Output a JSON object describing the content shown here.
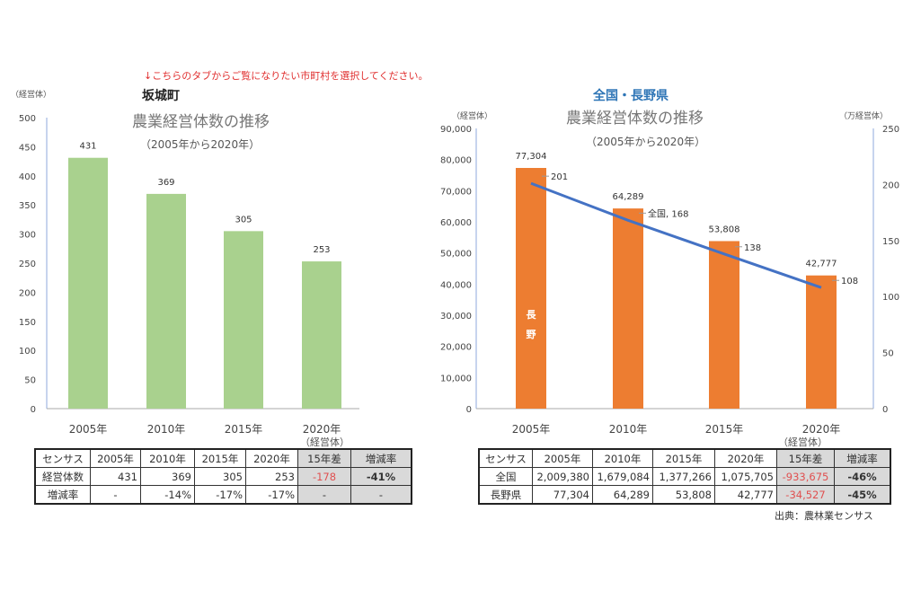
{
  "note": "↓こちらのタブからご覧になりたい市町村を選択してください。",
  "chart_data": [
    {
      "type": "bar",
      "heading": "坂城町",
      "title": "農業経営体数の推移",
      "subtitle": "（2005年から2020年）",
      "ylabel": "（経営体）",
      "categories": [
        "2005年",
        "2010年",
        "2015年",
        "2020年"
      ],
      "values": [
        431,
        369,
        305,
        253
      ],
      "ylim": [
        0,
        500
      ],
      "yticks": [
        0,
        50,
        100,
        150,
        200,
        250,
        300,
        350,
        400,
        450,
        500
      ],
      "color": "#a9d18e"
    },
    {
      "type": "bar+line",
      "heading": "全国・長野県",
      "title": "農業経営体数の推移",
      "subtitle": "（2005年から2020年）",
      "ylabel": "（経営体）",
      "y2label": "（万経営体）",
      "categories": [
        "2005年",
        "2010年",
        "2015年",
        "2020年"
      ],
      "series": [
        {
          "name": "長野",
          "type": "bar",
          "values": [
            77304,
            64289,
            53808,
            42777
          ],
          "labels": [
            "77,304",
            "64,289",
            "53,808",
            "42,777"
          ],
          "color": "#ed7d31",
          "axis": "left"
        },
        {
          "name": "全国",
          "type": "line",
          "values": [
            201,
            168,
            138,
            108
          ],
          "labels": [
            "201",
            "全国, 168",
            "138",
            "108"
          ],
          "color": "#4472c4",
          "axis": "right"
        }
      ],
      "ylim": [
        0,
        90000
      ],
      "yticks": [
        "0",
        "10,000",
        "20,000",
        "30,000",
        "40,000",
        "50,000",
        "60,000",
        "70,000",
        "80,000",
        "90,000"
      ],
      "y2lim": [
        0,
        250
      ],
      "y2ticks": [
        "0",
        "50",
        "100",
        "150",
        "200",
        "250"
      ],
      "bar_text": [
        "長",
        "野"
      ]
    }
  ],
  "left_table": {
    "unit": "（経営体）",
    "header": [
      "センサス",
      "2005年",
      "2010年",
      "2015年",
      "2020年",
      "15年差",
      "増減率"
    ],
    "rows": [
      [
        "経営体数",
        "431",
        "369",
        "305",
        "253",
        "-178",
        "-41%"
      ],
      [
        "増減率",
        "-",
        "-14%",
        "-17%",
        "-17%",
        "-",
        "-"
      ]
    ]
  },
  "right_table": {
    "unit": "（経営体）",
    "header": [
      "センサス",
      "2005年",
      "2010年",
      "2015年",
      "2020年",
      "15年差",
      "増減率"
    ],
    "rows": [
      [
        "全国",
        "2,009,380",
        "1,679,084",
        "1,377,266",
        "1,075,705",
        "-933,675",
        "-46%"
      ],
      [
        "長野県",
        "77,304",
        "64,289",
        "53,808",
        "42,777",
        "-34,527",
        "-45%"
      ]
    ]
  },
  "source": "出典：農林業センサス"
}
